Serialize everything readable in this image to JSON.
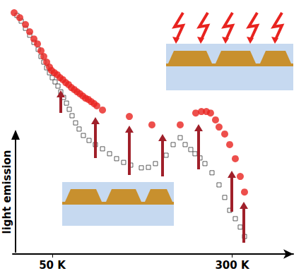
{
  "chart_data": {
    "type": "scatter",
    "y_label": "light emission",
    "xlim": [
      -5,
      385
    ],
    "xticks": [
      {
        "value": 50,
        "label": "50 K"
      },
      {
        "value": 300,
        "label": "300 K"
      }
    ],
    "ylim": [
      0,
      100
    ],
    "grid": false,
    "tick_labels": "x",
    "series": [
      {
        "color": "#e8231f",
        "marker": "circle",
        "x": [
          -3.0,
          4.8,
          12.7,
          18.6,
          24.5,
          29.4,
          34.3,
          38.2,
          42.2,
          46.1,
          49.0,
          53.0,
          56.9,
          60.8,
          64.7,
          68.7,
          72.6,
          76.5,
          80.5,
          84.4,
          88.3,
          92.3,
          96.2,
          100.1,
          104.0,
          108.0,
          111.9,
          119.8,
          157.1,
          188.5,
          227.8,
          249.4,
          257.3,
          264.2,
          270.0,
          276.9,
          281.8,
          289.7,
          296.6,
          304.4,
          311.3,
          317.2
        ],
        "values": [
          97.7,
          95.7,
          92.9,
          90.0,
          87.1,
          85.1,
          82.3,
          80.0,
          77.7,
          75.7,
          74.3,
          73.4,
          72.6,
          71.4,
          70.6,
          69.4,
          68.6,
          67.4,
          66.6,
          65.7,
          64.9,
          64.0,
          63.1,
          62.6,
          61.7,
          60.9,
          60.0,
          58.3,
          55.7,
          52.3,
          52.3,
          57.1,
          57.7,
          57.7,
          57.1,
          54.3,
          51.4,
          48.6,
          44.3,
          38.6,
          31.4,
          25.1
        ]
      },
      {
        "color": "#333333",
        "marker": "square-open",
        "x": [
          0.9,
          6.8,
          12.7,
          18.6,
          24.5,
          30.4,
          34.3,
          38.2,
          42.2,
          46.1,
          50.0,
          53.9,
          57.9,
          61.8,
          65.7,
          69.7,
          73.6,
          77.5,
          82.4,
          87.3,
          93.2,
          101.1,
          109.9,
          119.8,
          129.6,
          139.4,
          149.2,
          159.0,
          173.8,
          183.6,
          193.4,
          208.2,
          218.0,
          227.8,
          234.7,
          242.5,
          248.4,
          255.3,
          262.2,
          272.0,
          281.8,
          289.7,
          296.6,
          304.4,
          311.3,
          317.2
        ],
        "values": [
          96.6,
          94.3,
          91.4,
          88.6,
          85.7,
          82.9,
          80.0,
          77.7,
          75.4,
          73.4,
          71.4,
          69.7,
          68.0,
          65.7,
          63.4,
          61.1,
          58.6,
          56.0,
          53.1,
          50.6,
          48.0,
          46.0,
          44.3,
          42.6,
          40.6,
          38.6,
          37.1,
          36.0,
          34.9,
          35.1,
          36.6,
          40.0,
          44.3,
          47.1,
          44.3,
          42.3,
          40.6,
          38.9,
          36.6,
          32.9,
          28.0,
          22.9,
          17.7,
          14.3,
          10.9,
          7.1
        ]
      }
    ]
  }
}
